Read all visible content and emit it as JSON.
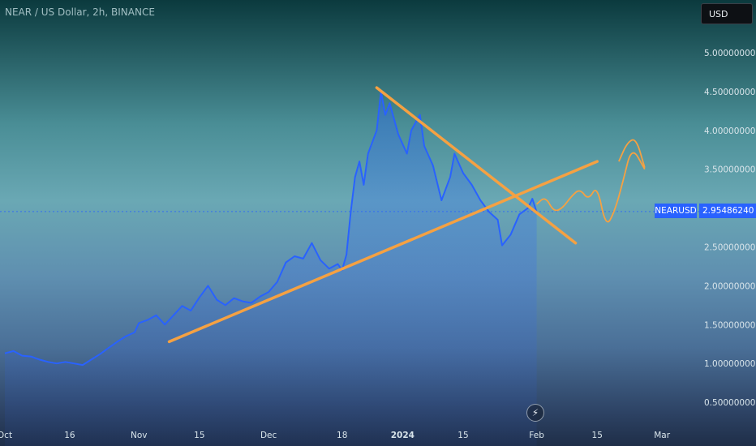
{
  "header": {
    "title": "NEAR / US Dollar, 2h, BINANCE",
    "currency_button": "USD"
  },
  "price_label": {
    "symbol": "NEARUSD",
    "value": "2.95486240"
  },
  "icons": {
    "goto_realtime": "lightning-icon"
  },
  "colors": {
    "price_line": "#2962ff",
    "trendline": "#f5a142",
    "label_bg": "#2962ff"
  },
  "chart_data": {
    "type": "line",
    "title": "NEAR / US Dollar, 2h, BINANCE",
    "xlabel": "",
    "ylabel": "",
    "ylim": [
      0.3,
      5.5
    ],
    "y_ticks": [
      "5.00000000",
      "4.50000000",
      "4.00000000",
      "3.50000000",
      "3.00000000",
      "2.50000000",
      "2.00000000",
      "1.50000000",
      "1.00000000",
      "0.50000000"
    ],
    "y_tick_values": [
      5.0,
      4.5,
      4.0,
      3.5,
      3.0,
      2.5,
      2.0,
      1.5,
      1.0,
      0.5
    ],
    "x_ticks": [
      {
        "label": "Oct",
        "date": "2023-10-01"
      },
      {
        "label": "16",
        "date": "2023-10-16"
      },
      {
        "label": "Nov",
        "date": "2023-11-01"
      },
      {
        "label": "15",
        "date": "2023-11-15"
      },
      {
        "label": "Dec",
        "date": "2023-12-01"
      },
      {
        "label": "18",
        "date": "2023-12-18"
      },
      {
        "label": "2024",
        "date": "2024-01-01",
        "bold": true
      },
      {
        "label": "15",
        "date": "2024-01-15"
      },
      {
        "label": "Feb",
        "date": "2024-02-01"
      },
      {
        "label": "15",
        "date": "2024-02-15"
      },
      {
        "label": "Mar",
        "date": "2024-03-01"
      }
    ],
    "series": [
      {
        "points": [
          [
            "2023-10-01",
            1.13
          ],
          [
            "2023-10-03",
            1.16
          ],
          [
            "2023-10-05",
            1.1
          ],
          [
            "2023-10-07",
            1.09
          ],
          [
            "2023-10-09",
            1.05
          ],
          [
            "2023-10-11",
            1.02
          ],
          [
            "2023-10-13",
            1.0
          ],
          [
            "2023-10-15",
            1.02
          ],
          [
            "2023-10-17",
            1.0
          ],
          [
            "2023-10-19",
            0.98
          ],
          [
            "2023-10-21",
            1.05
          ],
          [
            "2023-10-23",
            1.12
          ],
          [
            "2023-10-25",
            1.2
          ],
          [
            "2023-10-27",
            1.28
          ],
          [
            "2023-10-29",
            1.35
          ],
          [
            "2023-10-31",
            1.4
          ],
          [
            "2023-11-01",
            1.52
          ],
          [
            "2023-11-03",
            1.56
          ],
          [
            "2023-11-05",
            1.62
          ],
          [
            "2023-11-07",
            1.5
          ],
          [
            "2023-11-09",
            1.62
          ],
          [
            "2023-11-11",
            1.74
          ],
          [
            "2023-11-13",
            1.68
          ],
          [
            "2023-11-15",
            1.85
          ],
          [
            "2023-11-17",
            2.0
          ],
          [
            "2023-11-19",
            1.82
          ],
          [
            "2023-11-21",
            1.75
          ],
          [
            "2023-11-23",
            1.84
          ],
          [
            "2023-11-25",
            1.8
          ],
          [
            "2023-11-27",
            1.78
          ],
          [
            "2023-11-29",
            1.86
          ],
          [
            "2023-12-01",
            1.92
          ],
          [
            "2023-12-03",
            2.05
          ],
          [
            "2023-12-05",
            2.3
          ],
          [
            "2023-12-07",
            2.38
          ],
          [
            "2023-12-09",
            2.35
          ],
          [
            "2023-12-11",
            2.55
          ],
          [
            "2023-12-13",
            2.33
          ],
          [
            "2023-12-15",
            2.22
          ],
          [
            "2023-12-17",
            2.28
          ],
          [
            "2023-12-18",
            2.2
          ],
          [
            "2023-12-19",
            2.4
          ],
          [
            "2023-12-20",
            2.95
          ],
          [
            "2023-12-21",
            3.4
          ],
          [
            "2023-12-22",
            3.6
          ],
          [
            "2023-12-23",
            3.3
          ],
          [
            "2023-12-24",
            3.7
          ],
          [
            "2023-12-26",
            4.0
          ],
          [
            "2023-12-27",
            4.5
          ],
          [
            "2023-12-28",
            4.2
          ],
          [
            "2023-12-29",
            4.35
          ],
          [
            "2023-12-31",
            3.95
          ],
          [
            "2024-01-02",
            3.7
          ],
          [
            "2024-01-03",
            4.0
          ],
          [
            "2024-01-05",
            4.2
          ],
          [
            "2024-01-06",
            3.8
          ],
          [
            "2024-01-08",
            3.55
          ],
          [
            "2024-01-10",
            3.1
          ],
          [
            "2024-01-12",
            3.4
          ],
          [
            "2024-01-13",
            3.7
          ],
          [
            "2024-01-15",
            3.45
          ],
          [
            "2024-01-17",
            3.3
          ],
          [
            "2024-01-19",
            3.1
          ],
          [
            "2024-01-21",
            2.95
          ],
          [
            "2024-01-23",
            2.85
          ],
          [
            "2024-01-24",
            2.52
          ],
          [
            "2024-01-26",
            2.66
          ],
          [
            "2024-01-28",
            2.92
          ],
          [
            "2024-01-30",
            3.0
          ],
          [
            "2024-01-31",
            3.12
          ],
          [
            "2024-02-01",
            2.95
          ]
        ]
      }
    ],
    "drawings": [
      {
        "type": "trendline",
        "from": [
          "2023-11-08",
          1.28
        ],
        "to": [
          "2024-02-15",
          3.6
        ]
      },
      {
        "type": "trendline",
        "from": [
          "2023-12-26",
          4.55
        ],
        "to": [
          "2024-02-10",
          2.55
        ]
      }
    ],
    "projection": [
      [
        "2024-02-01",
        3.05
      ],
      [
        "2024-02-03",
        3.15
      ],
      [
        "2024-02-05",
        2.95
      ],
      [
        "2024-02-07",
        3.0
      ],
      [
        "2024-02-09",
        3.15
      ],
      [
        "2024-02-11",
        3.25
      ],
      [
        "2024-02-13",
        3.1
      ],
      [
        "2024-02-15",
        3.3
      ],
      [
        "2024-02-17",
        2.75
      ],
      [
        "2024-02-19",
        2.95
      ],
      [
        "2024-02-21",
        3.35
      ],
      [
        "2024-02-23",
        3.8
      ],
      [
        "2024-02-26",
        3.5
      ]
    ],
    "projection_upper": [
      [
        "2024-02-20",
        3.6
      ],
      [
        "2024-02-22",
        3.85
      ],
      [
        "2024-02-24",
        3.9
      ],
      [
        "2024-02-26",
        3.52
      ]
    ],
    "current_price": 2.9548624,
    "grid": false,
    "legend": "none"
  }
}
